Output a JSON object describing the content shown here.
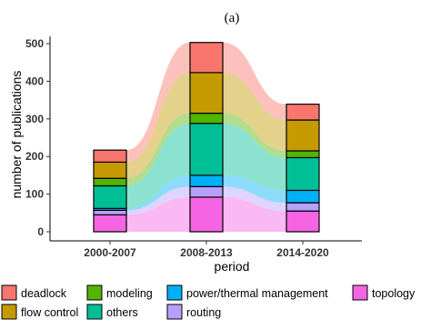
{
  "chart_data": {
    "type": "bar",
    "title": "(a)",
    "xlabel": "period",
    "ylabel": "number of publications",
    "ylim": [
      0,
      520
    ],
    "yticks": [
      0,
      100,
      200,
      300,
      400,
      500
    ],
    "categories": [
      "2000-2007",
      "2008-2013",
      "2014-2020"
    ],
    "stacked": true,
    "series": [
      {
        "name": "topology",
        "color": "#F564E3",
        "values": [
          45,
          92,
          55
        ]
      },
      {
        "name": "routing",
        "color": "#B79FFF",
        "values": [
          12,
          28,
          22
        ]
      },
      {
        "name": "power/thermal management",
        "color": "#00B0F6",
        "values": [
          5,
          30,
          33
        ]
      },
      {
        "name": "others",
        "color": "#00BF96",
        "values": [
          60,
          138,
          87
        ]
      },
      {
        "name": "modeling",
        "color": "#53B400",
        "values": [
          20,
          27,
          18
        ]
      },
      {
        "name": "flow control",
        "color": "#C49A00",
        "values": [
          43,
          108,
          82
        ]
      },
      {
        "name": "deadlock",
        "color": "#F8766D",
        "values": [
          32,
          80,
          42
        ]
      }
    ],
    "legend": {
      "position": "bottom",
      "rows": [
        [
          "deadlock",
          "modeling",
          "power/thermal management",
          "topology"
        ],
        [
          "flow control",
          "others",
          "routing"
        ]
      ]
    },
    "grid": false,
    "band_opacity": 0.45
  }
}
